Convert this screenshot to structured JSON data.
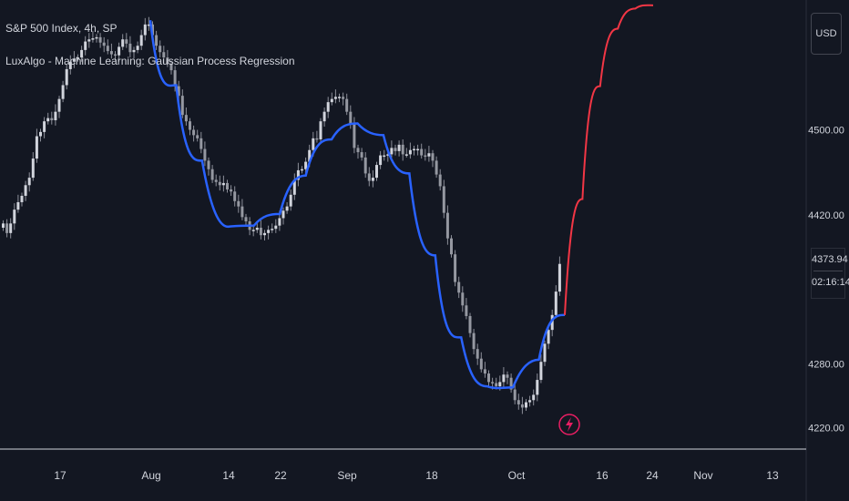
{
  "header": {
    "title": "S&P 500 Index, 4h, SP",
    "indicator": "LuxAlgo - Machine Learning: Gaussian Process Regression"
  },
  "price_scale": {
    "currency": "USD",
    "last_price": "4373.94",
    "countdown": "02:16:14"
  },
  "colors": {
    "background": "#131722",
    "candles": "#d1d4dc",
    "fit_line": "#2962ff",
    "forecast_line": "#f23645",
    "axis": "#d1d4dc",
    "marker": "#e91e63"
  },
  "chart_data": {
    "type": "candlestick",
    "x_ticks": [
      "17",
      "Aug",
      "14",
      "22",
      "Sep",
      "18",
      "Oct",
      "16",
      "24",
      "Nov",
      "13"
    ],
    "y_ticks": [
      "4500.00",
      "4420.00",
      "4280.00",
      "4220.00"
    ],
    "ylim": [
      4200,
      4622
    ],
    "candles": [
      4412,
      4403,
      4412,
      4425,
      4432,
      4438,
      4448,
      4455,
      4473,
      4494,
      4498,
      4508,
      4511,
      4509,
      4517,
      4529,
      4542,
      4557,
      4564,
      4567,
      4568,
      4575,
      4583,
      4585,
      4586,
      4587,
      4582,
      4579,
      4574,
      4571,
      4570,
      4578,
      4585,
      4581,
      4573,
      4575,
      4579,
      4589,
      4599,
      4599,
      4589,
      4579,
      4573,
      4568,
      4562,
      4556,
      4541,
      4532,
      4514,
      4508,
      4500,
      4495,
      4492,
      4482,
      4471,
      4463,
      4453,
      4451,
      4448,
      4450,
      4444,
      4442,
      4433,
      4428,
      4418,
      4414,
      4406,
      4406,
      4408,
      4401,
      4403,
      4406,
      4407,
      4410,
      4417,
      4424,
      4428,
      4439,
      4453,
      4462,
      4463,
      4470,
      4481,
      4492,
      4491,
      4508,
      4517,
      4526,
      4529,
      4531,
      4531,
      4529,
      4517,
      4505,
      4483,
      4479,
      4474,
      4459,
      4452,
      4455,
      4467,
      4476,
      4476,
      4477,
      4483,
      4480,
      4486,
      4477,
      4477,
      4481,
      4482,
      4482,
      4476,
      4475,
      4478,
      4471,
      4458,
      4447,
      4422,
      4398,
      4383,
      4357,
      4347,
      4335,
      4325,
      4309,
      4294,
      4285,
      4275,
      4271,
      4263,
      4262,
      4259,
      4263,
      4270,
      4267,
      4256,
      4246,
      4242,
      4239,
      4244,
      4246,
      4251,
      4265,
      4282,
      4299,
      4312,
      4326,
      4348,
      4374
    ],
    "fit": [
      [
        4603,
        4603
      ],
      [
        4532,
        4542
      ],
      [
        4470,
        4471
      ],
      [
        4424,
        4409
      ],
      [
        4410,
        4410
      ],
      [
        4420,
        4421
      ],
      [
        4452,
        4457
      ],
      [
        4489,
        4491
      ],
      [
        4505,
        4506
      ],
      [
        4497,
        4495
      ],
      [
        4462,
        4459
      ],
      [
        4387,
        4382
      ],
      [
        4300,
        4305
      ],
      [
        4264,
        4259
      ],
      [
        4256,
        4258
      ],
      [
        4278,
        4284
      ],
      [
        4326,
        4326
      ]
    ],
    "forecast": [
      [
        4326,
        4326
      ],
      [
        4427,
        4435
      ],
      [
        4540,
        4541
      ],
      [
        4591,
        4595
      ],
      [
        4612,
        4614
      ],
      [
        4618,
        4617
      ]
    ],
    "marker": "lightning-bolt"
  }
}
